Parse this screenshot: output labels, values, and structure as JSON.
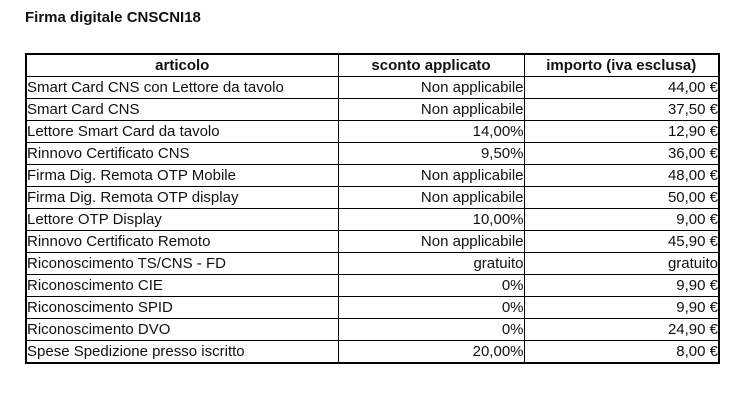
{
  "page": {
    "title": "Firma digitale CNSCNI18"
  },
  "colors": {
    "background": "#ffffff",
    "text": "#111111",
    "border": "#000000"
  },
  "table": {
    "columns": [
      {
        "key": "articolo",
        "label": "articolo"
      },
      {
        "key": "sconto",
        "label": "sconto applicato"
      },
      {
        "key": "importo",
        "label": "importo (iva esclusa)"
      }
    ],
    "rows": [
      {
        "articolo": "Smart Card CNS con Lettore da tavolo",
        "sconto": "Non applicabile",
        "importo": "44,00 €"
      },
      {
        "articolo": "Smart Card CNS",
        "sconto": "Non applicabile",
        "importo": "37,50 €"
      },
      {
        "articolo": "Lettore Smart Card da tavolo",
        "sconto": "14,00%",
        "importo": "12,90 €"
      },
      {
        "articolo": "Rinnovo Certificato CNS",
        "sconto": "9,50%",
        "importo": "36,00 €"
      },
      {
        "articolo": "Firma Dig. Remota OTP Mobile",
        "sconto": "Non applicabile",
        "importo": "48,00 €"
      },
      {
        "articolo": "Firma Dig. Remota OTP display",
        "sconto": "Non applicabile",
        "importo": "50,00 €"
      },
      {
        "articolo": "Lettore OTP Display",
        "sconto": "10,00%",
        "importo": "9,00 €"
      },
      {
        "articolo": "Rinnovo Certificato Remoto",
        "sconto": "Non applicabile",
        "importo": "45,90 €"
      },
      {
        "articolo": "Riconoscimento TS/CNS - FD",
        "sconto": "gratuito",
        "importo": "gratuito"
      },
      {
        "articolo": "Riconoscimento CIE",
        "sconto": "0%",
        "importo": "9,90 €"
      },
      {
        "articolo": "Riconoscimento SPID",
        "sconto": "0%",
        "importo": "9,90 €"
      },
      {
        "articolo": "Riconoscimento DVO",
        "sconto": "0%",
        "importo": "24,90 €"
      },
      {
        "articolo": "Spese Spedizione presso iscritto",
        "sconto": "20,00%",
        "importo": "8,00 €"
      }
    ]
  }
}
